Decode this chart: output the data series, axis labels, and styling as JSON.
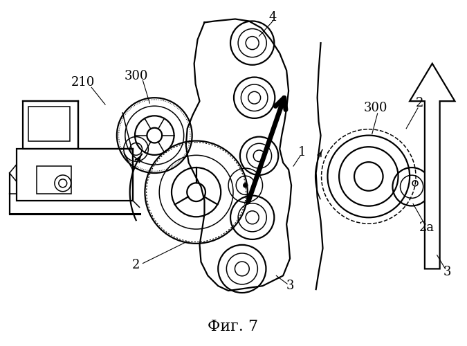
{
  "title": "Фиг. 7",
  "background_color": "#ffffff",
  "fig_width": 6.75,
  "fig_height": 5.0,
  "dpi": 100
}
